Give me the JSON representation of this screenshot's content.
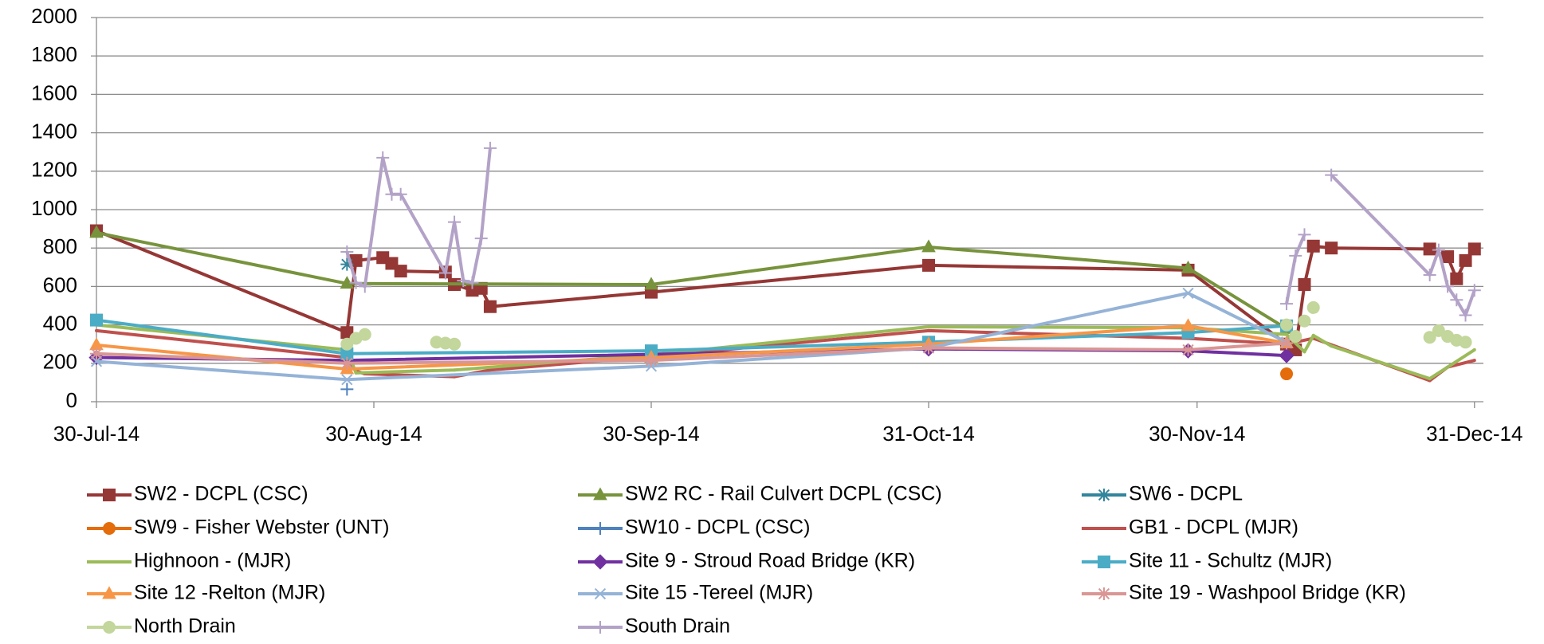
{
  "chart_data": {
    "type": "line",
    "ylim": [
      0,
      2000
    ],
    "yticks": [
      0,
      200,
      400,
      600,
      800,
      1000,
      1200,
      1400,
      1600,
      1800,
      2000
    ],
    "xlim": [
      "2014-07-30",
      "2015-01-01"
    ],
    "xticks": [
      {
        "value": "2014-07-30",
        "label": "30-Jul-14"
      },
      {
        "value": "2014-08-30",
        "label": "30-Aug-14"
      },
      {
        "value": "2014-09-30",
        "label": "30-Sep-14"
      },
      {
        "value": "2014-10-31",
        "label": "31-Oct-14"
      },
      {
        "value": "2014-11-30",
        "label": "30-Nov-14"
      },
      {
        "value": "2014-12-31",
        "label": "31-Dec-14"
      }
    ],
    "grid": true,
    "legend": "bottom",
    "series": [
      {
        "name": "SW2 - DCPL (CSC)",
        "color": "#953735",
        "marker": "square",
        "line": true,
        "x": [
          "2014-07-30",
          "2014-08-27",
          "2014-08-28",
          "2014-08-31",
          "2014-09-01",
          "2014-09-02",
          "2014-09-07",
          "2014-09-08",
          "2014-09-10",
          "2014-09-11",
          "2014-09-12",
          "2014-09-30",
          "2014-10-31",
          "2014-11-29",
          "2014-12-10",
          "2014-12-11",
          "2014-12-12",
          "2014-12-13",
          "2014-12-15",
          "2014-12-26",
          "2014-12-28",
          "2014-12-29",
          "2014-12-30",
          "2014-12-31"
        ],
        "values": [
          890,
          360,
          735,
          750,
          720,
          680,
          675,
          610,
          580,
          590,
          495,
          570,
          710,
          685,
          300,
          270,
          610,
          810,
          800,
          795,
          755,
          640,
          735,
          795
        ]
      },
      {
        "name": "SW2 RC - Rail Culvert DCPL (CSC)",
        "color": "#77933C",
        "marker": "triangle",
        "line": true,
        "x": [
          "2014-07-30",
          "2014-08-27",
          "2014-09-30",
          "2014-10-31",
          "2014-11-29",
          "2014-12-10"
        ],
        "values": [
          880,
          615,
          610,
          805,
          695,
          380
        ]
      },
      {
        "name": "SW6 - DCPL",
        "color": "#31859C",
        "marker": "asterisk",
        "line": true,
        "x": [
          "2014-08-27"
        ],
        "values": [
          715
        ]
      },
      {
        "name": "SW9 - Fisher Webster (UNT)",
        "color": "#E46C0A",
        "marker": "circle",
        "line": true,
        "x": [
          "2014-12-10"
        ],
        "values": [
          145
        ]
      },
      {
        "name": "SW10 - DCPL (CSC)",
        "color": "#4F81BD",
        "marker": "plus",
        "line": true,
        "x": [
          "2014-08-27"
        ],
        "values": [
          65
        ]
      },
      {
        "name": "GB1 - DCPL (MJR)",
        "color": "#C0504D",
        "marker": "none",
        "line": true,
        "x": [
          "2014-07-30",
          "2014-08-27",
          "2014-08-28",
          "2014-08-29",
          "2014-09-08",
          "2014-09-12",
          "2014-09-30",
          "2014-10-31",
          "2014-11-29",
          "2014-12-10",
          "2014-12-13",
          "2014-12-26",
          "2014-12-28",
          "2014-12-31"
        ],
        "values": [
          370,
          230,
          160,
          145,
          130,
          165,
          235,
          370,
          330,
          300,
          330,
          110,
          180,
          215
        ]
      },
      {
        "name": "Highnoon - (MJR)",
        "color": "#9BBB59",
        "marker": "none",
        "line": true,
        "x": [
          "2014-07-30",
          "2014-08-27",
          "2014-08-28",
          "2014-09-08",
          "2014-09-30",
          "2014-10-31",
          "2014-11-29",
          "2014-12-10",
          "2014-12-12",
          "2014-12-13",
          "2014-12-15",
          "2014-12-26",
          "2014-12-31"
        ],
        "values": [
          400,
          270,
          150,
          165,
          245,
          390,
          385,
          350,
          260,
          345,
          290,
          120,
          270
        ]
      },
      {
        "name": "Site 9 - Stroud Road Bridge (KR)",
        "color": "#7030A0",
        "marker": "diamond",
        "line": true,
        "x": [
          "2014-07-30",
          "2014-08-27",
          "2014-10-31",
          "2014-11-29",
          "2014-12-10"
        ],
        "values": [
          230,
          215,
          275,
          265,
          240
        ]
      },
      {
        "name": "Site 11 - Schultz (MJR)",
        "color": "#4BACC6",
        "marker": "square",
        "line": true,
        "x": [
          "2014-07-30",
          "2014-08-27",
          "2014-09-30",
          "2014-10-31",
          "2014-11-29",
          "2014-12-10"
        ],
        "values": [
          425,
          250,
          265,
          310,
          360,
          395
        ]
      },
      {
        "name": "Site 12 -Relton (MJR)",
        "color": "#F79646",
        "marker": "triangle",
        "line": true,
        "x": [
          "2014-07-30",
          "2014-08-27",
          "2014-09-30",
          "2014-10-31",
          "2014-11-29",
          "2014-12-10"
        ],
        "values": [
          295,
          170,
          230,
          300,
          395,
          305
        ]
      },
      {
        "name": "Site 15 -Tereel (MJR)",
        "color": "#95B3D7",
        "marker": "x",
        "line": true,
        "x": [
          "2014-07-30",
          "2014-08-27",
          "2014-09-30",
          "2014-10-31",
          "2014-11-29",
          "2014-12-10"
        ],
        "values": [
          210,
          115,
          185,
          280,
          565,
          310
        ]
      },
      {
        "name": "Site 19 - Washpool Bridge (KR)",
        "color": "#D99694",
        "marker": "asterisk",
        "line": true,
        "x": [
          "2014-07-30",
          "2014-08-27",
          "2014-09-30",
          "2014-10-31",
          "2014-11-29",
          "2014-12-10"
        ],
        "values": [
          250,
          200,
          215,
          280,
          270,
          305
        ]
      },
      {
        "name": "North Drain",
        "color": "#C3D69B",
        "marker": "circle",
        "line": false,
        "x": [
          "2014-08-27",
          "2014-08-28",
          "2014-08-29",
          "2014-09-06",
          "2014-09-07",
          "2014-09-08",
          "2014-12-10",
          "2014-12-11",
          "2014-12-12",
          "2014-12-13",
          "2014-12-26",
          "2014-12-27",
          "2014-12-28",
          "2014-12-29",
          "2014-12-30"
        ],
        "values": [
          300,
          330,
          350,
          310,
          305,
          300,
          400,
          340,
          420,
          490,
          335,
          370,
          340,
          320,
          310
        ]
      },
      {
        "name": "South Drain",
        "color": "#B3A2C7",
        "marker": "plus",
        "line": true,
        "x": [
          "2014-08-27",
          "2014-08-28",
          "2014-08-29",
          "2014-08-31",
          "2014-09-01",
          "2014-09-02",
          "2014-09-07",
          "2014-09-08",
          "2014-09-09",
          "2014-09-10",
          "2014-09-11",
          "2014-09-12",
          null,
          "2014-12-10",
          "2014-12-11",
          "2014-12-12",
          null,
          "2014-12-15",
          "2014-12-26",
          "2014-12-27",
          "2014-12-28",
          "2014-12-29",
          "2014-12-30",
          "2014-12-31"
        ],
        "values": [
          780,
          620,
          600,
          1270,
          1080,
          1080,
          670,
          935,
          630,
          620,
          850,
          1320,
          null,
          510,
          760,
          870,
          null,
          1180,
          660,
          790,
          600,
          530,
          450,
          580
        ]
      }
    ]
  }
}
